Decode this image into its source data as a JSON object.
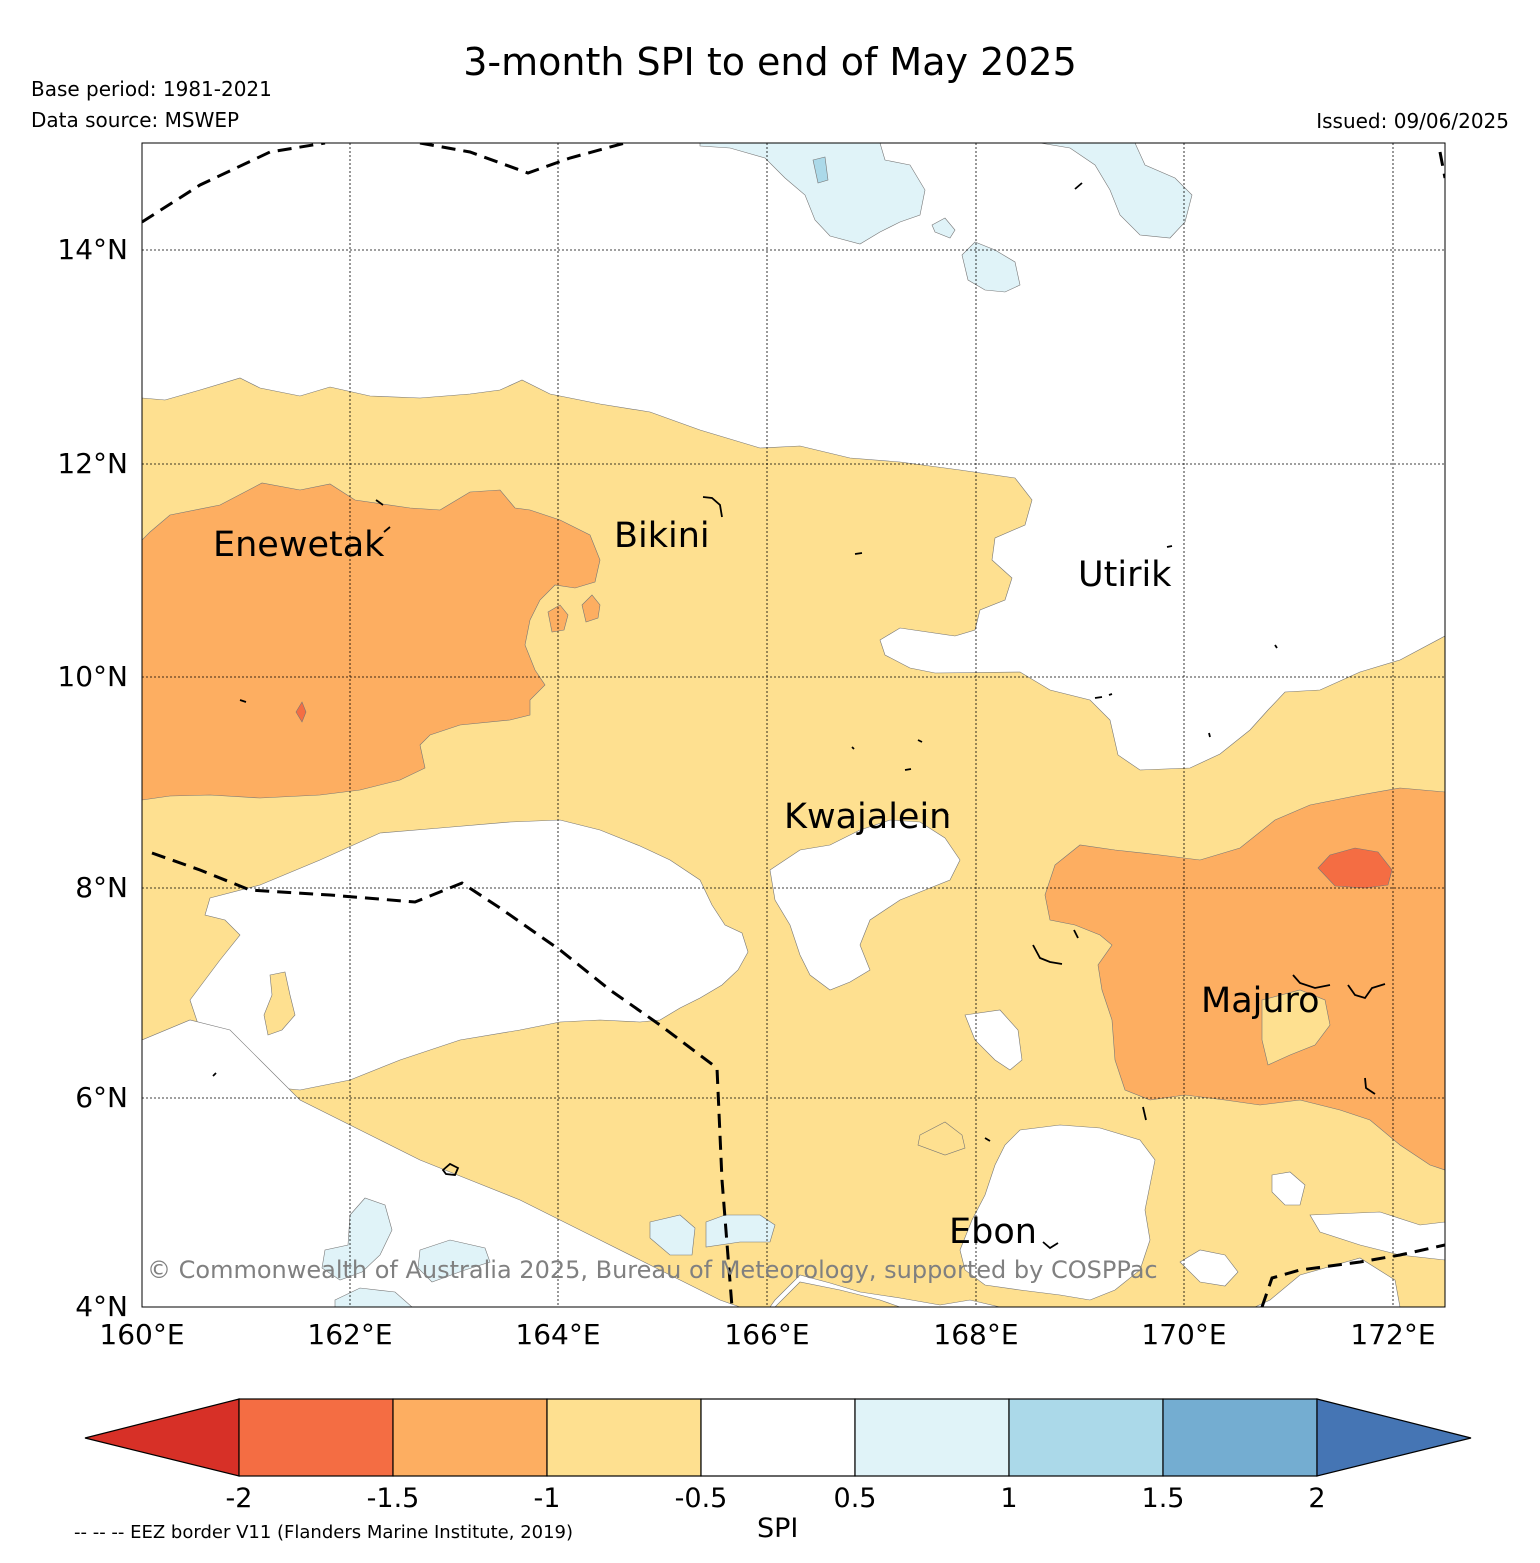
{
  "title": "3-month SPI to end of May 2025",
  "base_period": "Base period: 1981-2021",
  "data_source": "Data source: MSWEP",
  "issued": "Issued: 09/06/2025",
  "credit": "© Commonwealth of Australia 2025, Bureau of Meteorology, supported by COSPPac",
  "eez_note": "-- -- -- EEZ border V11 (Flanders Marine Institute, 2019)",
  "map": {
    "lat_ticks": [
      "14°N",
      "12°N",
      "10°N",
      "8°N",
      "6°N",
      "4°N"
    ],
    "lon_ticks": [
      "160°E",
      "162°E",
      "164°E",
      "166°E",
      "168°E",
      "170°E",
      "172°E"
    ],
    "places": [
      {
        "name": "Enewetak"
      },
      {
        "name": "Bikini"
      },
      {
        "name": "Utirik"
      },
      {
        "name": "Kwajalein"
      },
      {
        "name": "Majuro"
      },
      {
        "name": "Ebon"
      }
    ]
  },
  "colorbar": {
    "title": "SPI",
    "ticks": [
      "-2",
      "-1.5",
      "-1",
      "-0.5",
      "0.5",
      "1",
      "1.5",
      "2"
    ],
    "colors": {
      "below_-2": "#d73027",
      "-2_to_-1.5": "#f46d43",
      "-1.5_to_-1": "#fdae61",
      "-1_to_-0.5": "#fee090",
      "-0.5_to_0.5": "#ffffff",
      "0.5_to_1": "#e0f3f8",
      "1_to_1.5": "#abd9e9",
      "1.5_to_2": "#74add1",
      "above_2": "#4575b4"
    }
  }
}
